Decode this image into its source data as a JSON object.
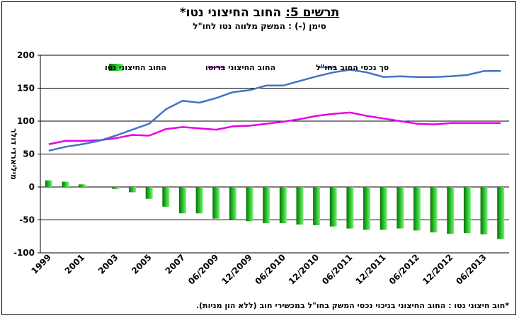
{
  "title": {
    "prefix": "תרשים 5:",
    "main": " החוב החיצוני נטו*"
  },
  "subtitle": "סימן (-) : המשק מלווה נטו לחו\"ל",
  "footnote": "*חוב חיצוני נטו : החוב החיצוני בניכוי נכסי המשק בחו\"ל במכשירי חוב (ללא הון מניות).",
  "colors": {
    "assets": "#4472C4",
    "gross": "#E600E6",
    "net_bar": "#22BB22"
  },
  "chart_data": {
    "type": "bar",
    "title": "החוב החיצוני נטו*",
    "ylabel": "מיליארדי דולר",
    "ylim": [
      -100,
      200
    ],
    "yticks": [
      200,
      150,
      100,
      50,
      0,
      -50,
      -100
    ],
    "grid": true,
    "legend_position": "top",
    "x_tick_labels": [
      "1999",
      "2001",
      "2003",
      "2005",
      "2007",
      "06/2009",
      "12/2009",
      "06/2010",
      "12/2010",
      "06/2011",
      "12/2011",
      "06/2012",
      "12/2012",
      "06/2013"
    ],
    "x_tick_indices": [
      0,
      2,
      4,
      6,
      8,
      10,
      12,
      14,
      16,
      18,
      20,
      22,
      24,
      26
    ],
    "series": [
      {
        "name": "החוב החיצוני נטו",
        "kind": "bar",
        "color": "#22BB22",
        "values": [
          10,
          8,
          4,
          0,
          -3,
          -8,
          -18,
          -30,
          -40,
          -40,
          -48,
          -50,
          -52,
          -55,
          -55,
          -57,
          -58,
          -60,
          -63,
          -65,
          -65,
          -63,
          -66,
          -69,
          -71,
          -70,
          -72,
          -79
        ]
      },
      {
        "name": "החוב החיצוני ברוטו",
        "kind": "line",
        "color": "#E600E6",
        "values": [
          65,
          70,
          70,
          71,
          74,
          79,
          78,
          88,
          91,
          89,
          87,
          92,
          93,
          96,
          99,
          103,
          108,
          111,
          113,
          108,
          104,
          100,
          96,
          95,
          97,
          97,
          97,
          97
        ]
      },
      {
        "name": "סך נכסי החוב בחו\"ל",
        "kind": "line",
        "color": "#4472C4",
        "values": [
          55,
          61,
          65,
          70,
          78,
          87,
          96,
          118,
          131,
          128,
          135,
          144,
          147,
          154,
          154,
          161,
          168,
          174,
          178,
          174,
          167,
          168,
          167,
          167,
          168,
          170,
          176,
          176
        ]
      }
    ]
  }
}
